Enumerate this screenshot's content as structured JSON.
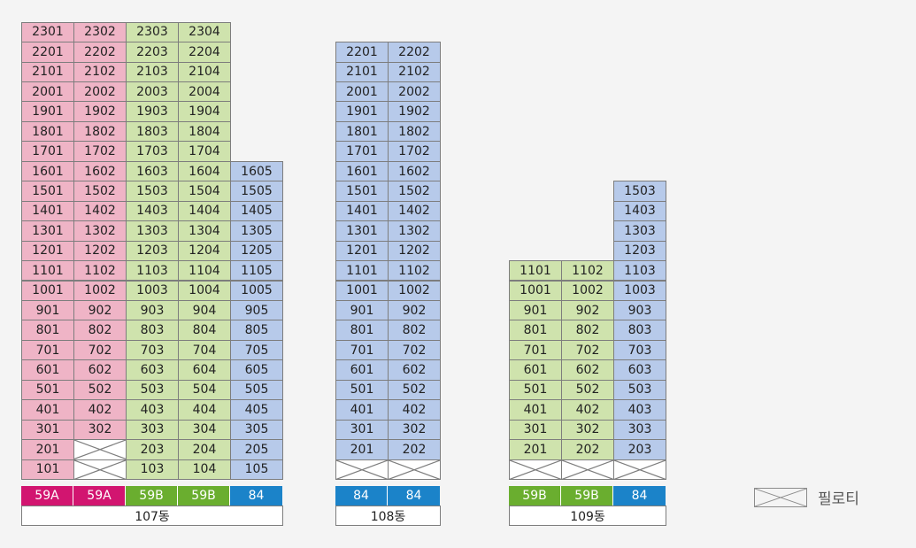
{
  "colors": {
    "pink": "#efb4c6",
    "green": "#cfe3ad",
    "blue": "#b7caea",
    "pilotis": "#ffffff",
    "type_59A": "#d21570",
    "type_59B": "#6aae2f",
    "type_84": "#1b83c9"
  },
  "buildings": [
    {
      "name": "107동",
      "columns": [
        {
          "type": "59A",
          "color": "pink",
          "top_floor": 23,
          "units": [
            "2301",
            "2201",
            "2101",
            "2001",
            "1901",
            "1801",
            "1701",
            "1601",
            "1501",
            "1401",
            "1301",
            "1201",
            "1101",
            "1001",
            "901",
            "801",
            "701",
            "601",
            "501",
            "401",
            "301",
            "201",
            "101"
          ]
        },
        {
          "type": "59A",
          "color": "pink",
          "top_floor": 23,
          "units": [
            "2302",
            "2202",
            "2102",
            "2002",
            "1902",
            "1802",
            "1702",
            "1602",
            "1502",
            "1402",
            "1302",
            "1202",
            "1102",
            "1002",
            "902",
            "802",
            "702",
            "602",
            "502",
            "402",
            "302",
            "",
            "X"
          ]
        },
        {
          "type": "59B",
          "color": "green",
          "top_floor": 23,
          "units": [
            "2303",
            "2203",
            "2103",
            "2003",
            "1903",
            "1803",
            "1703",
            "1603",
            "1503",
            "1403",
            "1303",
            "1203",
            "1103",
            "1003",
            "903",
            "803",
            "703",
            "603",
            "503",
            "403",
            "303",
            "203",
            "103"
          ]
        },
        {
          "type": "59B",
          "color": "green",
          "top_floor": 23,
          "units": [
            "2304",
            "2204",
            "2104",
            "2004",
            "1904",
            "1804",
            "1704",
            "1604",
            "1504",
            "1404",
            "1304",
            "1204",
            "1104",
            "1004",
            "904",
            "804",
            "704",
            "604",
            "504",
            "404",
            "304",
            "204",
            "104"
          ]
        },
        {
          "type": "84",
          "color": "blue",
          "top_floor": 16,
          "units": [
            "1605",
            "1505",
            "1405",
            "1305",
            "1205",
            "1105",
            "1005",
            "905",
            "805",
            "705",
            "605",
            "505",
            "405",
            "305",
            "205",
            "105"
          ]
        }
      ]
    },
    {
      "name": "108동",
      "columns": [
        {
          "type": "84",
          "color": "blue",
          "top_floor": 22,
          "units": [
            "2201",
            "2101",
            "2001",
            "1901",
            "1801",
            "1701",
            "1601",
            "1501",
            "1401",
            "1301",
            "1201",
            "1101",
            "1001",
            "901",
            "801",
            "701",
            "601",
            "501",
            "401",
            "301",
            "201",
            "X"
          ]
        },
        {
          "type": "84",
          "color": "blue",
          "top_floor": 22,
          "units": [
            "2202",
            "2102",
            "2002",
            "1902",
            "1802",
            "1702",
            "1602",
            "1502",
            "1402",
            "1302",
            "1202",
            "1102",
            "1002",
            "902",
            "802",
            "702",
            "602",
            "502",
            "402",
            "302",
            "202",
            "X"
          ]
        }
      ]
    },
    {
      "name": "109동",
      "columns": [
        {
          "type": "59B",
          "color": "green",
          "top_floor": 11,
          "units": [
            "1101",
            "1001",
            "901",
            "801",
            "701",
            "601",
            "501",
            "401",
            "301",
            "201",
            "X"
          ]
        },
        {
          "type": "59B",
          "color": "green",
          "top_floor": 11,
          "units": [
            "1102",
            "1002",
            "902",
            "802",
            "702",
            "602",
            "502",
            "402",
            "302",
            "202",
            "X"
          ]
        },
        {
          "type": "84",
          "color": "blue",
          "top_floor": 15,
          "units": [
            "1503",
            "1403",
            "1303",
            "1203",
            "1103",
            "1003",
            "903",
            "803",
            "703",
            "603",
            "503",
            "403",
            "303",
            "203",
            "X"
          ]
        }
      ]
    }
  ],
  "legend": {
    "icon": "pilotis-cross-box-icon",
    "label": "필로티"
  }
}
